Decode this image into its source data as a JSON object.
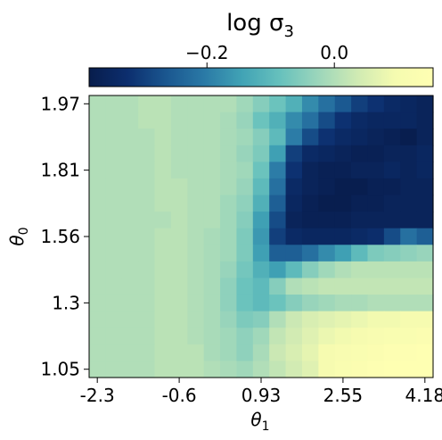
{
  "chart_data": {
    "type": "heatmap",
    "title": "",
    "colorbar": {
      "label": "log σ₃",
      "label_main": "log σ",
      "label_sub": "3",
      "ticks": [
        -0.2,
        0.0
      ],
      "tick_labels": [
        "−0.2",
        "0.0"
      ],
      "range": [
        -0.385,
        0.155
      ],
      "colormap": "YlGnBu_r",
      "stops": [
        "#081d4c",
        "#0c2e6e",
        "#1a568f",
        "#2a79a6",
        "#41a3b5",
        "#67c1bd",
        "#9cd6bb",
        "#cfeab3",
        "#f5fbb0",
        "#ffffb2"
      ],
      "position": "top"
    },
    "xlabel": "θ₁",
    "xlabel_main": "θ",
    "xlabel_sub": "1",
    "ylabel": "θ₀",
    "ylabel_main": "θ",
    "ylabel_sub": "0",
    "x_tick_labels": [
      "-2.3",
      "-0.6",
      "0.93",
      "2.55",
      "4.18"
    ],
    "y_tick_labels": [
      "1.97",
      "1.81",
      "1.56",
      "1.3",
      "1.05"
    ],
    "x_tick_cols": [
      0,
      5,
      10,
      15,
      20
    ],
    "y_tick_rows": [
      0,
      4,
      8,
      12,
      16
    ],
    "n_cols": 21,
    "n_rows": 17,
    "values": [
      [
        0.0,
        0.0,
        0.0,
        0.01,
        0.01,
        0.0,
        0.0,
        0.0,
        0.0,
        -0.02,
        -0.05,
        -0.08,
        -0.12,
        -0.18,
        -0.22,
        -0.26,
        -0.3,
        -0.32,
        -0.34,
        -0.35,
        -0.36
      ],
      [
        0.0,
        0.0,
        0.0,
        0.01,
        0.01,
        0.0,
        0.0,
        0.0,
        -0.01,
        -0.03,
        -0.08,
        -0.12,
        -0.18,
        -0.22,
        -0.28,
        -0.32,
        -0.34,
        -0.35,
        -0.35,
        -0.35,
        -0.36
      ],
      [
        0.0,
        0.0,
        0.0,
        0.0,
        0.01,
        0.0,
        0.0,
        0.0,
        -0.01,
        -0.02,
        -0.05,
        -0.1,
        -0.2,
        -0.28,
        -0.32,
        -0.34,
        -0.35,
        -0.36,
        -0.37,
        -0.38,
        -0.36
      ],
      [
        0.0,
        0.0,
        0.0,
        0.0,
        0.01,
        0.0,
        0.0,
        0.0,
        -0.01,
        -0.03,
        -0.06,
        -0.15,
        -0.3,
        -0.34,
        -0.35,
        -0.36,
        -0.37,
        -0.37,
        -0.36,
        -0.36,
        -0.35
      ],
      [
        0.0,
        0.0,
        0.0,
        0.0,
        0.01,
        0.0,
        0.0,
        0.0,
        -0.01,
        -0.02,
        -0.08,
        -0.2,
        -0.32,
        -0.36,
        -0.37,
        -0.37,
        -0.36,
        -0.36,
        -0.35,
        -0.36,
        -0.35
      ],
      [
        0.0,
        0.0,
        0.0,
        0.0,
        0.01,
        0.01,
        0.0,
        0.0,
        -0.01,
        -0.03,
        -0.1,
        -0.22,
        -0.34,
        -0.36,
        -0.37,
        -0.38,
        -0.38,
        -0.37,
        -0.37,
        -0.36,
        -0.36
      ],
      [
        0.0,
        0.0,
        0.0,
        0.0,
        0.01,
        0.01,
        0.0,
        0.0,
        -0.02,
        -0.04,
        -0.12,
        -0.25,
        -0.35,
        -0.37,
        -0.38,
        -0.38,
        -0.37,
        -0.37,
        -0.36,
        -0.36,
        -0.36
      ],
      [
        0.0,
        0.0,
        0.0,
        0.0,
        0.0,
        0.01,
        0.0,
        0.0,
        -0.02,
        -0.05,
        -0.15,
        -0.28,
        -0.36,
        -0.37,
        -0.37,
        -0.37,
        -0.36,
        -0.36,
        -0.36,
        -0.36,
        -0.36
      ],
      [
        0.0,
        0.0,
        0.0,
        0.0,
        0.01,
        0.01,
        0.0,
        -0.01,
        -0.02,
        -0.06,
        -0.16,
        -0.3,
        -0.34,
        -0.35,
        -0.35,
        -0.35,
        -0.34,
        -0.33,
        -0.28,
        -0.22,
        -0.25
      ],
      [
        0.0,
        0.0,
        0.0,
        0.0,
        0.01,
        0.01,
        0.0,
        -0.01,
        -0.02,
        -0.06,
        -0.15,
        -0.25,
        -0.25,
        -0.22,
        -0.18,
        -0.15,
        -0.1,
        -0.06,
        -0.05,
        -0.04,
        -0.03
      ],
      [
        0.0,
        0.0,
        0.0,
        0.0,
        0.01,
        0.01,
        0.0,
        -0.01,
        -0.03,
        -0.07,
        -0.12,
        -0.15,
        -0.1,
        -0.05,
        -0.02,
        0.0,
        0.01,
        0.01,
        0.01,
        0.01,
        0.01
      ],
      [
        0.0,
        0.0,
        0.0,
        0.0,
        0.01,
        0.01,
        0.0,
        -0.01,
        -0.04,
        -0.08,
        -0.1,
        -0.05,
        0.0,
        0.01,
        0.02,
        0.02,
        0.02,
        0.02,
        0.02,
        0.02,
        0.02
      ],
      [
        0.0,
        0.0,
        0.0,
        0.0,
        0.01,
        0.01,
        0.0,
        -0.01,
        -0.04,
        -0.08,
        -0.1,
        -0.08,
        -0.05,
        -0.03,
        -0.02,
        -0.01,
        -0.01,
        0.0,
        0.0,
        0.0,
        0.0
      ],
      [
        0.0,
        0.0,
        0.0,
        0.0,
        0.01,
        0.01,
        0.0,
        -0.01,
        -0.03,
        -0.06,
        -0.05,
        0.0,
        0.03,
        0.05,
        0.06,
        0.07,
        0.08,
        0.09,
        0.09,
        0.1,
        0.1
      ],
      [
        0.0,
        0.0,
        0.0,
        0.0,
        0.01,
        0.01,
        0.0,
        -0.01,
        -0.02,
        -0.04,
        -0.02,
        0.02,
        0.04,
        0.06,
        0.08,
        0.09,
        0.1,
        0.11,
        0.12,
        0.12,
        0.13
      ],
      [
        0.0,
        0.0,
        0.0,
        0.0,
        0.01,
        0.01,
        0.01,
        -0.01,
        -0.02,
        -0.04,
        -0.01,
        0.03,
        0.05,
        0.07,
        0.1,
        0.11,
        0.12,
        0.13,
        0.14,
        0.14,
        0.15
      ],
      [
        0.0,
        0.0,
        0.0,
        0.0,
        0.01,
        0.01,
        0.01,
        0.0,
        -0.01,
        -0.02,
        0.0,
        0.02,
        0.04,
        0.06,
        0.1,
        0.12,
        0.13,
        0.14,
        0.15,
        0.15,
        0.15
      ]
    ],
    "grid": false
  }
}
